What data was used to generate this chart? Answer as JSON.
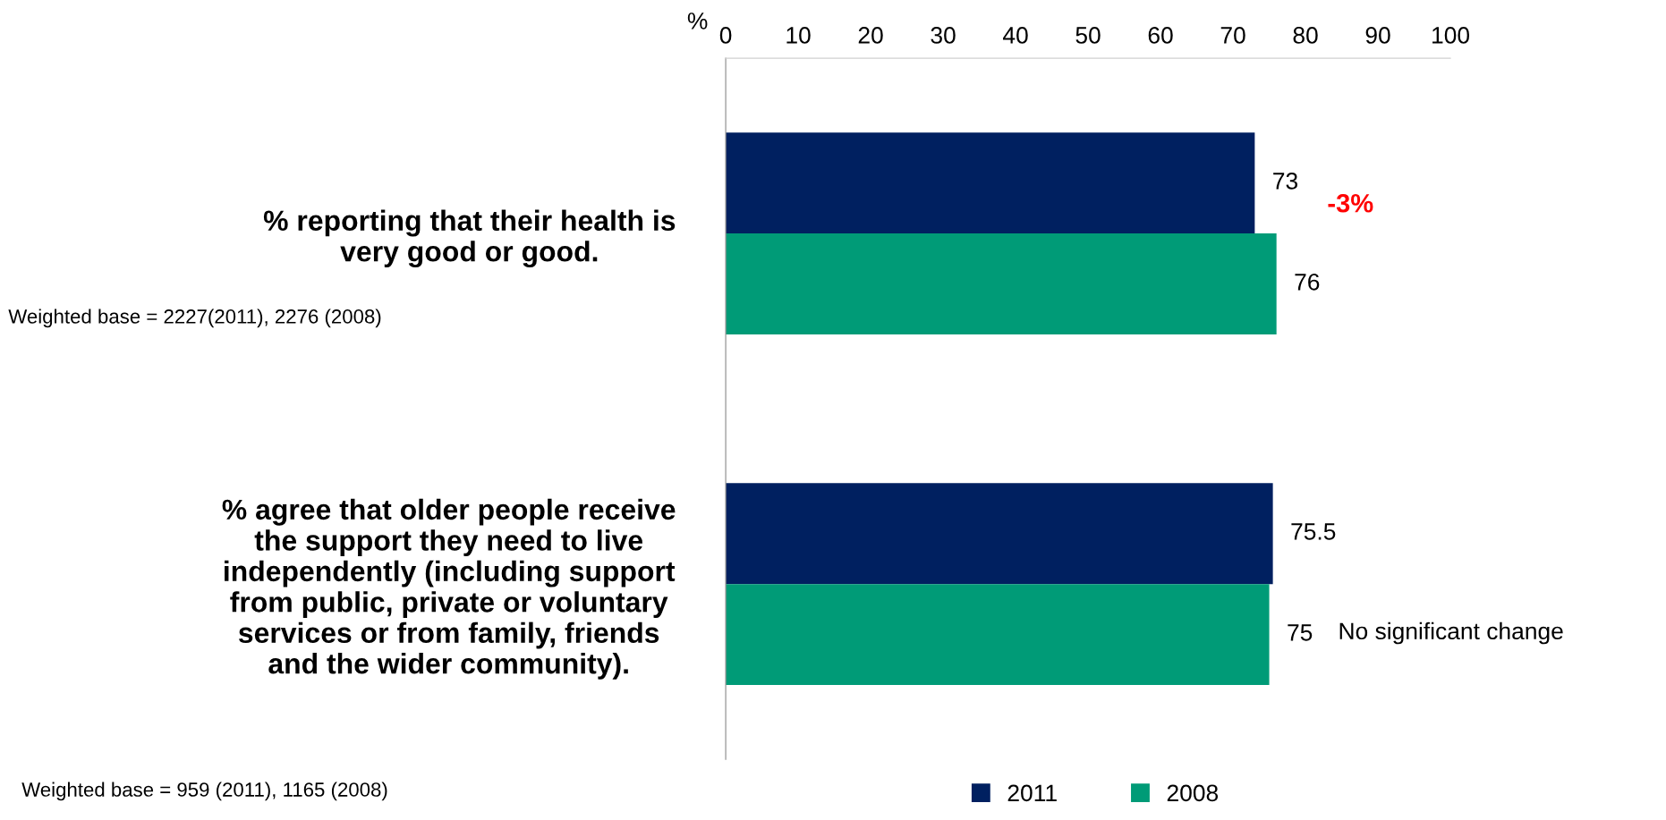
{
  "chart_data": {
    "type": "bar",
    "orientation": "horizontal",
    "categories": [
      "% reporting that their health is\nvery good or good.",
      "% agree that older people receive\nthe support they need to live\nindependently (including support\nfrom public, private or voluntary\nservices or from family, friends\nand the wider community)."
    ],
    "series": [
      {
        "name": "2011",
        "color": "#002060",
        "values": [
          73,
          75.5
        ]
      },
      {
        "name": "2008",
        "color": "#009b77",
        "values": [
          76,
          75
        ]
      }
    ],
    "xlabel": "%",
    "xlim": [
      0,
      100
    ],
    "xticks": [
      0,
      10,
      20,
      30,
      40,
      50,
      60,
      70,
      80,
      90,
      100
    ],
    "data_labels": true,
    "grid": false,
    "legend": "bottom",
    "annotations": [
      "Weighted base = 2227(2011), 2276 (2008)",
      "Weighted base = 959 (2011), 1165 (2008)",
      "-3%",
      "No significant change"
    ]
  }
}
